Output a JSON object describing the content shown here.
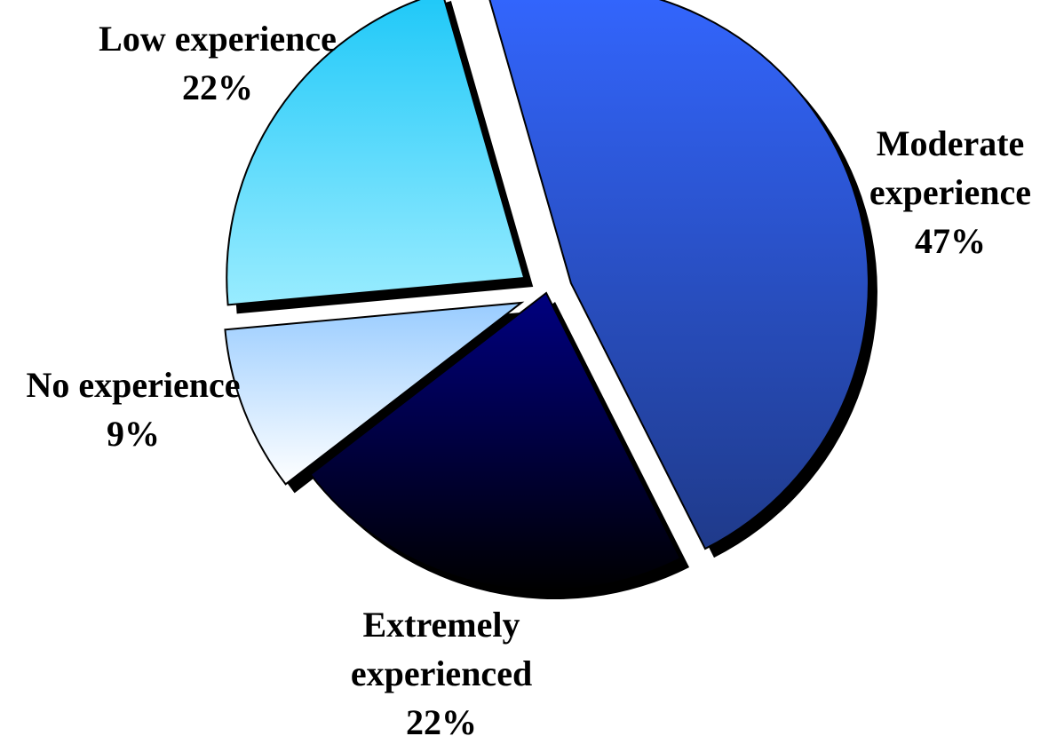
{
  "chart_data": {
    "type": "pie",
    "title": "",
    "slices": [
      {
        "label_lines": [
          "Moderate",
          "experience"
        ],
        "percent_label": "47%",
        "value": 47,
        "color_top": "#3366ff",
        "color_bottom": "#1f3a8a",
        "exploded": true
      },
      {
        "label_lines": [
          "Extremely",
          "experienced"
        ],
        "percent_label": "22%",
        "value": 22,
        "color_top": "#000080",
        "color_bottom": "#000000",
        "exploded": false
      },
      {
        "label_lines": [
          "No experience"
        ],
        "percent_label": "9%",
        "value": 9,
        "color_top": "#99ccff",
        "color_bottom": "#ffffff",
        "exploded": true
      },
      {
        "label_lines": [
          "Low experience"
        ],
        "percent_label": "22%",
        "value": 22,
        "color_top": "#1ec8f8",
        "color_bottom": "#99ecff",
        "exploded": true
      }
    ],
    "legend": "none",
    "labels_position": "outside"
  }
}
